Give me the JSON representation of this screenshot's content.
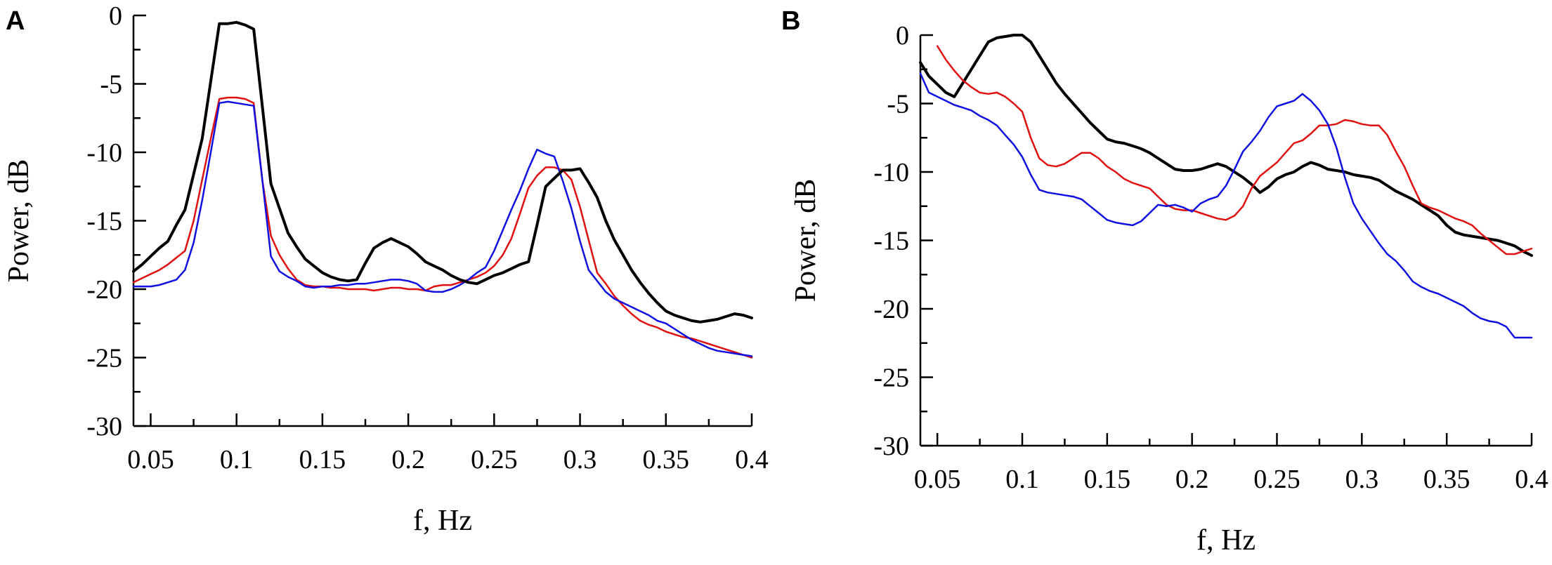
{
  "chart_data": [
    {
      "type": "line",
      "panel": "A",
      "xlabel": "f, Hz",
      "ylabel": "Power, dB",
      "xlim": [
        0.04,
        0.4
      ],
      "ylim": [
        -30,
        0
      ],
      "xticks": [
        0.05,
        0.1,
        0.15,
        0.2,
        0.25,
        0.3,
        0.35,
        0.4
      ],
      "xtick_labels": [
        "0.05",
        "0.1",
        "0.15",
        "0.2",
        "0.25",
        "0.3",
        "0.35",
        "0.4"
      ],
      "yticks": [
        0,
        -5,
        -10,
        -15,
        -20,
        -25,
        -30
      ],
      "ytick_labels": [
        "0",
        "-5",
        "-10",
        "-15",
        "-20",
        "-25",
        "-30"
      ],
      "series": [
        {
          "name": "black",
          "color": "#000000",
          "width": 4,
          "x": [
            0.04,
            0.045,
            0.05,
            0.055,
            0.06,
            0.065,
            0.07,
            0.075,
            0.08,
            0.085,
            0.09,
            0.095,
            0.1,
            0.105,
            0.11,
            0.115,
            0.12,
            0.125,
            0.13,
            0.135,
            0.14,
            0.145,
            0.15,
            0.155,
            0.16,
            0.165,
            0.17,
            0.175,
            0.18,
            0.185,
            0.19,
            0.195,
            0.2,
            0.205,
            0.21,
            0.215,
            0.22,
            0.225,
            0.23,
            0.235,
            0.24,
            0.245,
            0.25,
            0.255,
            0.26,
            0.265,
            0.27,
            0.275,
            0.28,
            0.285,
            0.29,
            0.295,
            0.3,
            0.305,
            0.31,
            0.315,
            0.32,
            0.325,
            0.33,
            0.335,
            0.34,
            0.345,
            0.35,
            0.355,
            0.36,
            0.365,
            0.37,
            0.375,
            0.38,
            0.385,
            0.39,
            0.395,
            0.4
          ],
          "y": [
            -18.7,
            -18.2,
            -17.6,
            -17.0,
            -16.5,
            -15.3,
            -14.2,
            -11.6,
            -9.0,
            -4.8,
            -0.6,
            -0.6,
            -0.5,
            -0.7,
            -1.0,
            -6.6,
            -12.3,
            -14.1,
            -15.9,
            -16.9,
            -17.8,
            -18.3,
            -18.8,
            -19.1,
            -19.3,
            -19.4,
            -19.3,
            -18.1,
            -17.0,
            -16.6,
            -16.3,
            -16.6,
            -16.9,
            -17.4,
            -18.0,
            -18.3,
            -18.6,
            -19.0,
            -19.3,
            -19.5,
            -19.6,
            -19.3,
            -19.0,
            -18.8,
            -18.5,
            -18.2,
            -18.0,
            -15.3,
            -12.5,
            -11.9,
            -11.3,
            -11.3,
            -11.2,
            -12.2,
            -13.3,
            -15.0,
            -16.4,
            -17.5,
            -18.6,
            -19.5,
            -20.3,
            -21.0,
            -21.6,
            -21.9,
            -22.1,
            -22.3,
            -22.4,
            -22.3,
            -22.2,
            -22.0,
            -21.8,
            -21.9,
            -22.1
          ],
          "note": "digitized approximately"
        }
      ]
    }
  ]
}
